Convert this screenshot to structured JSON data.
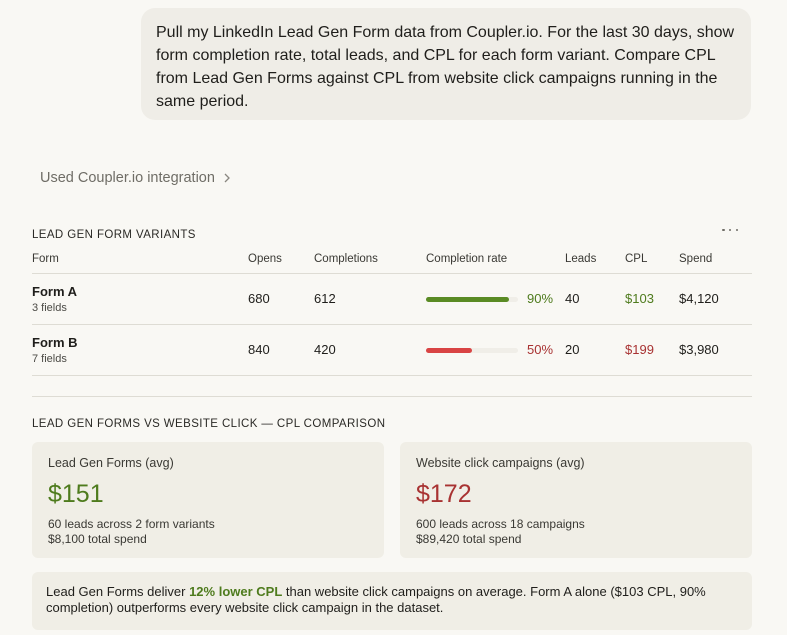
{
  "user_message": "Pull my LinkedIn Lead Gen Form data from Coupler.io. For the last 30 days, show form completion rate, total leads, and CPL for each form variant. Compare CPL from Lead Gen Forms against CPL from website click campaigns running in the same period.",
  "tool_use": {
    "label": "Used Coupler.io integration",
    "icon": "chevron-right-icon"
  },
  "variants_section": {
    "title": "LEAD GEN FORM VARIANTS",
    "columns": [
      "Form",
      "Opens",
      "Completions",
      "Completion rate",
      "Leads",
      "CPL",
      "Spend"
    ],
    "rows": [
      {
        "form": "Form A",
        "fields": "3 fields",
        "opens": "680",
        "completions": "612",
        "completion_rate": "90%",
        "rate_value": 0.9,
        "leads": "40",
        "cpl": "$103",
        "spend": "$4,120",
        "status": "good"
      },
      {
        "form": "Form B",
        "fields": "7 fields",
        "opens": "840",
        "completions": "420",
        "completion_rate": "50%",
        "rate_value": 0.5,
        "leads": "20",
        "cpl": "$199",
        "spend": "$3,980",
        "status": "bad"
      }
    ]
  },
  "comparison_section": {
    "title": "LEAD GEN FORMS VS WEBSITE CLICK — CPL COMPARISON",
    "lead_gen": {
      "label": "Lead Gen Forms (avg)",
      "value": "$151",
      "line1": "60 leads across 2 form variants",
      "line2": "$8,100 total spend"
    },
    "website": {
      "label": "Website click campaigns (avg)",
      "value": "$172",
      "line1": "600 leads across 18 campaigns",
      "line2": "$89,420 total spend"
    }
  },
  "summary": {
    "before": "Lead Gen Forms deliver ",
    "highlight": "12% lower CPL",
    "after": " than website click campaigns on average. Form A alone ($103 CPL, 90% completion) outperforms every website click campaign in the dataset."
  },
  "colors": {
    "good": "#5a8b24",
    "good_text": "#4e7b1d",
    "bad": "#d94444",
    "bad_text": "#a83232"
  }
}
